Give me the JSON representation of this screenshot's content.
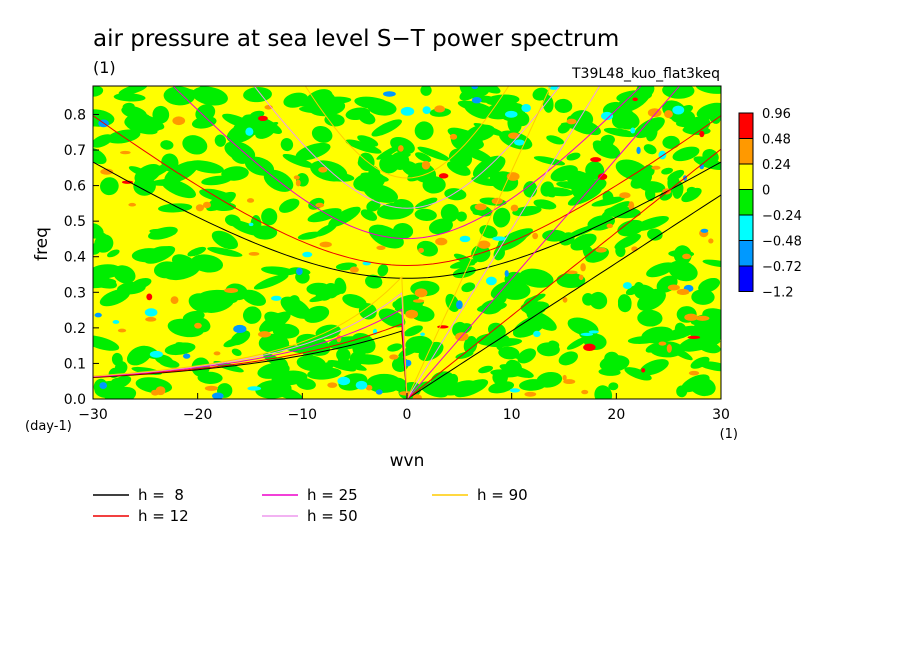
{
  "chart_data": {
    "type": "heatmap",
    "title": "air pressure at sea level S−T power spectrum",
    "units": "(1)",
    "experiment": "T39L48_kuo_flat3keq",
    "xlabel": "wvn",
    "ylabel": "freq",
    "x_unit": "(1)",
    "y_unit": "(day-1)",
    "xlim": [
      -30,
      30
    ],
    "ylim": [
      0,
      0.88
    ],
    "x_ticks": [
      -30,
      -20,
      -10,
      0,
      10,
      20,
      30
    ],
    "x_tick_labels": [
      "−30",
      "−20",
      "−10",
      "0",
      "10",
      "20",
      "30"
    ],
    "y_ticks": [
      0,
      0.1,
      0.2,
      0.3,
      0.4,
      0.5,
      0.6,
      0.7,
      0.8
    ],
    "y_tick_labels": [
      "0.0",
      "0.1",
      "0.2",
      "0.3",
      "0.4",
      "0.5",
      "0.6",
      "0.7",
      "0.8"
    ],
    "colorbar": {
      "levels": [
        "0.96",
        "0.48",
        "0.24",
        "0",
        "−0.24",
        "−0.48",
        "−0.72",
        "−1.2"
      ],
      "colors": [
        "#ff0000",
        "#ff9900",
        "#ffff00",
        "#00ee00",
        "#00ffff",
        "#0099ff",
        "#0000ff"
      ]
    },
    "field_colors": {
      "background_positive": "#ffff00",
      "background_negative": "#00ee00",
      "blobs": [
        "#ff9900",
        "#00ffff",
        "#0099ff",
        "#ff0000",
        "#0000ff"
      ]
    },
    "dispersion_curves": [
      {
        "name": "h =  8",
        "color": "#000000"
      },
      {
        "name": "h = 12",
        "color": "#ee0000"
      },
      {
        "name": "h = 25",
        "color": "#ee00cc"
      },
      {
        "name": "h = 50",
        "color": "#ee99ee"
      },
      {
        "name": "h = 90",
        "color": "#ffcc00"
      }
    ]
  }
}
